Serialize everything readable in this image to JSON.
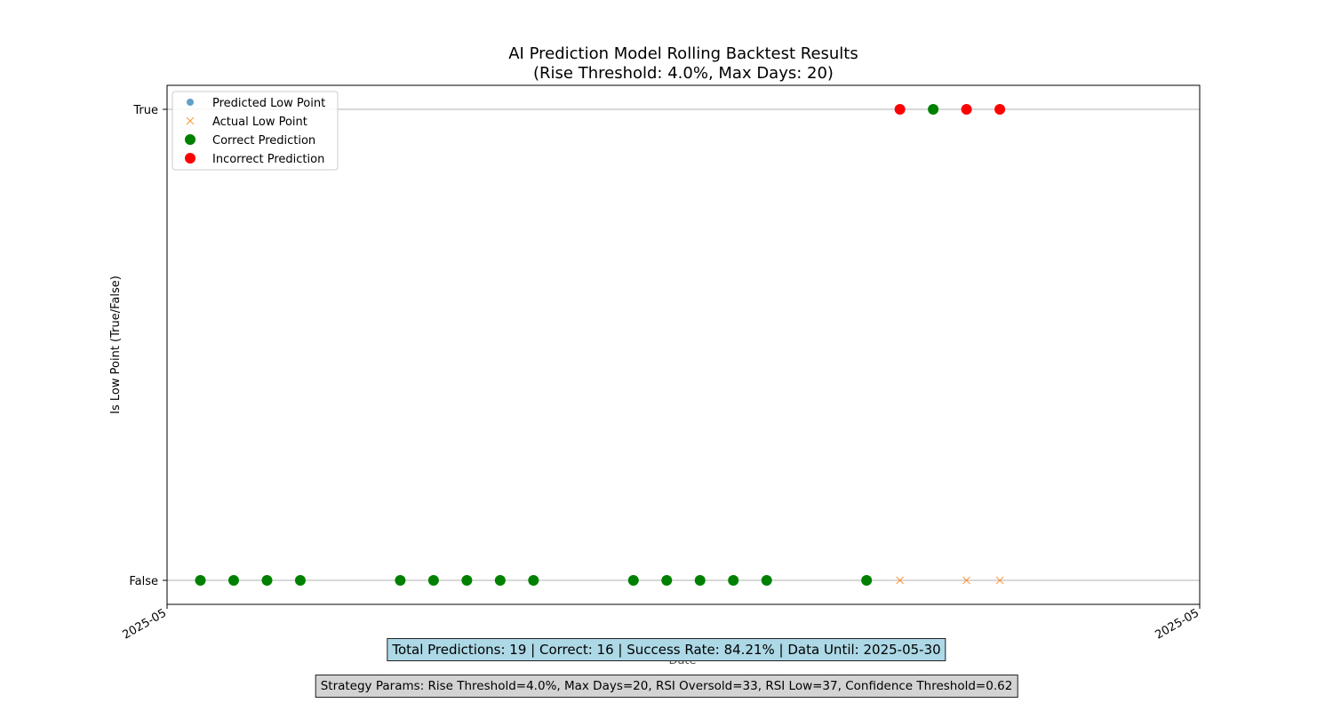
{
  "chart_data": {
    "type": "scatter",
    "title": "AI Prediction Model Rolling Backtest Results",
    "subtitle": "(Rise Threshold: 4.0%, Max Days: 20)",
    "xlabel": "Date",
    "ylabel": "Is Low Point (True/False)",
    "x_tick_labels": [
      "2025-05",
      "2025-05"
    ],
    "y_categories": [
      "False",
      "True"
    ],
    "grid": "horizontal",
    "legend_position": "top-left",
    "legend": [
      {
        "label": "Predicted Low Point",
        "marker": "circle-small",
        "color": "#1f77b4"
      },
      {
        "label": "Actual Low Point",
        "marker": "x",
        "color": "#ff7f0e"
      },
      {
        "label": "Correct Prediction",
        "marker": "circle",
        "color": "#008000"
      },
      {
        "label": "Incorrect Prediction",
        "marker": "circle",
        "color": "#ff0000"
      }
    ],
    "xlim": [
      "2025-04-30",
      "2025-05-31"
    ],
    "series": [
      {
        "name": "Actual Low Point",
        "marker": "x",
        "color": "#ff7f0e",
        "x": [
          "2025-05-01",
          "2025-05-02",
          "2025-05-03",
          "2025-05-04",
          "2025-05-07",
          "2025-05-08",
          "2025-05-09",
          "2025-05-10",
          "2025-05-11",
          "2025-05-14",
          "2025-05-15",
          "2025-05-16",
          "2025-05-17",
          "2025-05-18",
          "2025-05-21",
          "2025-05-22",
          "2025-05-23",
          "2025-05-24",
          "2025-05-25"
        ],
        "y": [
          "False",
          "False",
          "False",
          "False",
          "False",
          "False",
          "False",
          "False",
          "False",
          "False",
          "False",
          "False",
          "False",
          "False",
          "False",
          "False",
          "True",
          "False",
          "False"
        ]
      },
      {
        "name": "Correct Prediction",
        "marker": "circle",
        "color": "#008000",
        "x": [
          "2025-05-01",
          "2025-05-02",
          "2025-05-03",
          "2025-05-04",
          "2025-05-07",
          "2025-05-08",
          "2025-05-09",
          "2025-05-10",
          "2025-05-11",
          "2025-05-14",
          "2025-05-15",
          "2025-05-16",
          "2025-05-17",
          "2025-05-18",
          "2025-05-21",
          "2025-05-23"
        ],
        "y": [
          "False",
          "False",
          "False",
          "False",
          "False",
          "False",
          "False",
          "False",
          "False",
          "False",
          "False",
          "False",
          "False",
          "False",
          "False",
          "True"
        ]
      },
      {
        "name": "Incorrect Prediction",
        "marker": "circle",
        "color": "#ff0000",
        "x": [
          "2025-05-22",
          "2025-05-24",
          "2025-05-25"
        ],
        "y": [
          "True",
          "True",
          "True"
        ]
      }
    ]
  },
  "summary_text": "Total Predictions: 19 | Correct: 16 | Success Rate: 84.21% | Data Until: 2025-05-30",
  "params_text": "Strategy Params: Rise Threshold=4.0%, Max Days=20, RSI Oversold=33, RSI Low=37, Confidence Threshold=0.62"
}
